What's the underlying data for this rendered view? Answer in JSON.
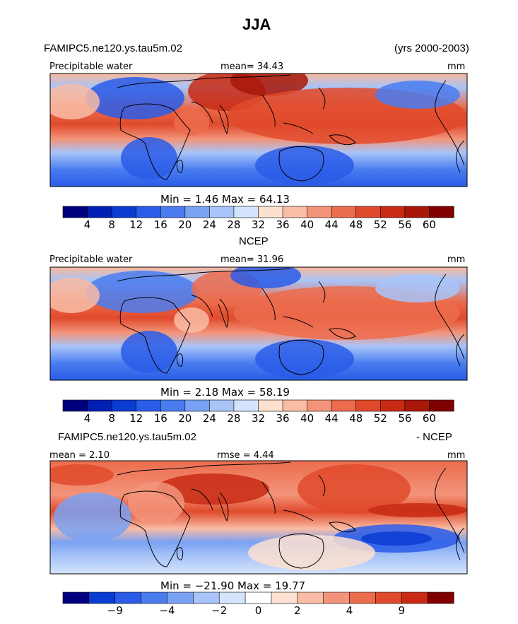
{
  "figure_title": "JJA",
  "header": {
    "left": "FAMIPC5.ne120.ys.tau5m.02",
    "right": "(yrs 2000-2003)"
  },
  "chart_data": [
    {
      "type": "heatmap",
      "panel_title": "",
      "title": "Precipitable water",
      "units": "mm",
      "mean": "34.43",
      "min": "1.46",
      "max": "64.13",
      "stats_label": "Min =    1.46 Max =   64.13",
      "mean_label": "mean=  34.43",
      "contour_levels": [
        4,
        8,
        12,
        16,
        20,
        24,
        28,
        32,
        36,
        40,
        44,
        48,
        52,
        56,
        60
      ],
      "colorbar_labels": [
        "4",
        "8",
        "12",
        "16",
        "20",
        "24",
        "28",
        "32",
        "36",
        "40",
        "44",
        "48",
        "52",
        "56",
        "60"
      ]
    },
    {
      "type": "heatmap",
      "panel_title": "NCEP",
      "title": "Precipitable water",
      "units": "mm",
      "mean": "31.96",
      "min": "2.18",
      "max": "58.19",
      "stats_label": "Min =    2.18 Max =   58.19",
      "mean_label": "mean=  31.96",
      "contour_levels": [
        4,
        8,
        12,
        16,
        20,
        24,
        28,
        32,
        36,
        40,
        44,
        48,
        52,
        56,
        60
      ],
      "colorbar_labels": [
        "4",
        "8",
        "12",
        "16",
        "20",
        "24",
        "28",
        "32",
        "36",
        "40",
        "44",
        "48",
        "52",
        "56",
        "60"
      ]
    },
    {
      "type": "heatmap",
      "panel_title_left": "FAMIPC5.ne120.ys.tau5m.02",
      "panel_title_right": "- NCEP",
      "units": "mm",
      "mean": "2.10",
      "rmse": "4.44",
      "min": "-21.90",
      "max": "19.77",
      "mean_label": "mean =    2.10",
      "rmse_label": "rmse =    4.44",
      "stats_label": "Min = −21.90 Max =   19.77",
      "colorbar_labels": [
        "−9",
        "−4",
        "−2",
        "0",
        "2",
        "4",
        "9"
      ]
    }
  ],
  "colors": {
    "scale": [
      "#00007f",
      "#0020b4",
      "#0a3cd2",
      "#2a5ce8",
      "#4a7cf0",
      "#7aa2f4",
      "#a8c4f8",
      "#d4e4fc",
      "#fde0d0",
      "#f9bca4",
      "#f3947a",
      "#ec6c4e",
      "#e04a2c",
      "#c82a14",
      "#a81808",
      "#800000"
    ],
    "diff_scale": [
      "#00007f",
      "#0a3cd2",
      "#2a5ce8",
      "#4a7cf0",
      "#7aa2f4",
      "#a8c4f8",
      "#d4e4fc",
      "#ffffff",
      "#fde0d0",
      "#f9bca4",
      "#f3947a",
      "#ec6c4e",
      "#e04a2c",
      "#c82a14",
      "#800000"
    ]
  }
}
